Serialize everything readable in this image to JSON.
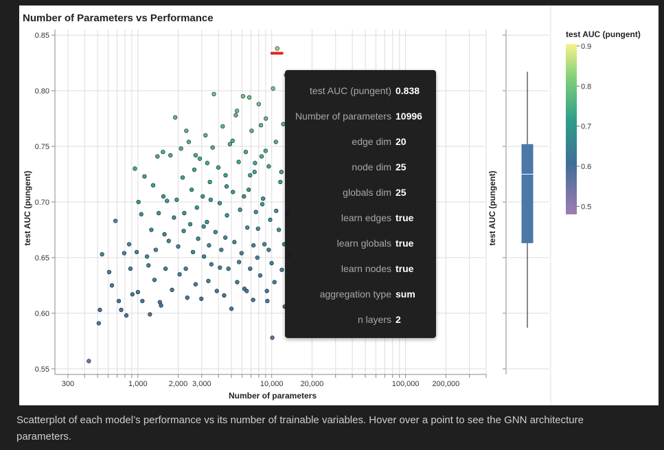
{
  "caption": "Scatterplot of each model’s performance vs its number of trainable variables. Hover over a point to see the GNN architecture parameters.",
  "chart_data": {
    "type": "scatter",
    "title": "Number of Parameters vs Performance",
    "xlabel": "Number of parameters",
    "ylabel": "test AUC (pungent)",
    "x_scale": "log",
    "xlim": [
      240,
      400000
    ],
    "ylim": [
      0.545,
      0.855
    ],
    "x_ticks": [
      300,
      1000,
      2000,
      3000,
      10000,
      20000,
      100000,
      200000
    ],
    "x_tick_labels": [
      "300",
      "1,000",
      "2,000",
      "3,000",
      "10,000",
      "20,000",
      "100,000",
      "200,000"
    ],
    "y_ticks": [
      0.55,
      0.6,
      0.65,
      0.7,
      0.75,
      0.8,
      0.85
    ],
    "y_tick_labels": [
      "0.55",
      "0.60",
      "0.65",
      "0.70",
      "0.75",
      "0.80",
      "0.85"
    ],
    "grid": true,
    "color_field": "test AUC (pungent)",
    "colorscale": [
      "#a07cb3",
      "#3e6f96",
      "#2e9d8a",
      "#7fd07a",
      "#f5f28a"
    ],
    "points": [
      [
        430,
        0.557
      ],
      [
        510,
        0.591
      ],
      [
        520,
        0.603
      ],
      [
        540,
        0.653
      ],
      [
        610,
        0.637
      ],
      [
        640,
        0.625
      ],
      [
        680,
        0.683
      ],
      [
        720,
        0.611
      ],
      [
        750,
        0.603
      ],
      [
        790,
        0.654
      ],
      [
        820,
        0.598
      ],
      [
        860,
        0.662
      ],
      [
        880,
        0.64
      ],
      [
        910,
        0.617
      ],
      [
        950,
        0.73
      ],
      [
        980,
        0.655
      ],
      [
        1000,
        0.619
      ],
      [
        1010,
        0.7
      ],
      [
        1060,
        0.689
      ],
      [
        1080,
        0.611
      ],
      [
        1120,
        0.723
      ],
      [
        1170,
        0.651
      ],
      [
        1200,
        0.643
      ],
      [
        1230,
        0.599
      ],
      [
        1260,
        0.675
      ],
      [
        1300,
        0.715
      ],
      [
        1330,
        0.63
      ],
      [
        1360,
        0.657
      ],
      [
        1400,
        0.741
      ],
      [
        1430,
        0.69
      ],
      [
        1460,
        0.61
      ],
      [
        1490,
        0.607
      ],
      [
        1540,
        0.745
      ],
      [
        1580,
        0.671
      ],
      [
        1610,
        0.64
      ],
      [
        1650,
        0.701
      ],
      [
        1700,
        0.665
      ],
      [
        1750,
        0.742
      ],
      [
        1800,
        0.621
      ],
      [
        1860,
        0.686
      ],
      [
        1900,
        0.776
      ],
      [
        1950,
        0.702
      ],
      [
        2000,
        0.66
      ],
      [
        2050,
        0.635
      ],
      [
        2100,
        0.748
      ],
      [
        2160,
        0.722
      ],
      [
        2220,
        0.69
      ],
      [
        2280,
        0.64
      ],
      [
        2340,
        0.614
      ],
      [
        2400,
        0.754
      ],
      [
        2460,
        0.68
      ],
      [
        2520,
        0.711
      ],
      [
        2580,
        0.655
      ],
      [
        2640,
        0.729
      ],
      [
        2700,
        0.626
      ],
      [
        2760,
        0.695
      ],
      [
        2820,
        0.667
      ],
      [
        2900,
        0.739
      ],
      [
        2980,
        0.613
      ],
      [
        3050,
        0.705
      ],
      [
        3120,
        0.651
      ],
      [
        3200,
        0.76
      ],
      [
        3280,
        0.682
      ],
      [
        3360,
        0.629
      ],
      [
        3450,
        0.718
      ],
      [
        3540,
        0.644
      ],
      [
        3620,
        0.749
      ],
      [
        3700,
        0.797
      ],
      [
        3800,
        0.673
      ],
      [
        3890,
        0.62
      ],
      [
        3990,
        0.731
      ],
      [
        4090,
        0.699
      ],
      [
        4200,
        0.657
      ],
      [
        4300,
        0.768
      ],
      [
        4410,
        0.616
      ],
      [
        4520,
        0.724
      ],
      [
        4630,
        0.688
      ],
      [
        4750,
        0.64
      ],
      [
        4870,
        0.752
      ],
      [
        5000,
        0.604
      ],
      [
        5130,
        0.709
      ],
      [
        5260,
        0.664
      ],
      [
        5390,
        0.778
      ],
      [
        5520,
        0.628
      ],
      [
        5660,
        0.736
      ],
      [
        5800,
        0.693
      ],
      [
        5950,
        0.654
      ],
      [
        6100,
        0.795
      ],
      [
        6250,
        0.622
      ],
      [
        6400,
        0.745
      ],
      [
        6570,
        0.677
      ],
      [
        6730,
        0.711
      ],
      [
        6900,
        0.64
      ],
      [
        7080,
        0.764
      ],
      [
        7260,
        0.612
      ],
      [
        7440,
        0.727
      ],
      [
        7620,
        0.691
      ],
      [
        7810,
        0.65
      ],
      [
        8000,
        0.788
      ],
      [
        8200,
        0.634
      ],
      [
        8400,
        0.741
      ],
      [
        8610,
        0.703
      ],
      [
        8820,
        0.662
      ],
      [
        9040,
        0.775
      ],
      [
        9270,
        0.611
      ],
      [
        9500,
        0.732
      ],
      [
        9740,
        0.684
      ],
      [
        9980,
        0.645
      ],
      [
        10230,
        0.802
      ],
      [
        10480,
        0.628
      ],
      [
        10740,
        0.754
      ],
      [
        10996,
        0.838
      ],
      [
        11300,
        0.675
      ],
      [
        11600,
        0.718
      ],
      [
        11900,
        0.639
      ],
      [
        12200,
        0.77
      ],
      [
        12500,
        0.606
      ],
      [
        12800,
        0.814
      ],
      [
        13100,
        0.689
      ],
      [
        13500,
        0.652
      ],
      [
        1550,
        0.705
      ],
      [
        2300,
        0.764
      ],
      [
        3100,
        0.678
      ],
      [
        4100,
        0.641
      ],
      [
        5100,
        0.755
      ],
      [
        6200,
        0.705
      ],
      [
        7300,
        0.661
      ],
      [
        8300,
        0.769
      ],
      [
        9200,
        0.62
      ],
      [
        10100,
        0.578
      ],
      [
        2700,
        0.742
      ],
      [
        3500,
        0.702
      ],
      [
        4500,
        0.668
      ],
      [
        5500,
        0.782
      ],
      [
        6500,
        0.62
      ],
      [
        7500,
        0.735
      ],
      [
        8500,
        0.698
      ],
      [
        9500,
        0.657
      ],
      [
        3300,
        0.735
      ],
      [
        6800,
        0.794
      ],
      [
        2200,
        0.674
      ],
      [
        3400,
        0.661
      ],
      [
        4600,
        0.714
      ],
      [
        5700,
        0.646
      ],
      [
        6900,
        0.724
      ],
      [
        7900,
        0.676
      ],
      [
        9000,
        0.746
      ],
      [
        10800,
        0.692
      ],
      [
        11800,
        0.727
      ],
      [
        12400,
        0.662
      ]
    ],
    "highlight_point": [
      10996,
      0.838
    ],
    "boxplot": {
      "min": 0.587,
      "q1": 0.663,
      "median": 0.725,
      "q3": 0.752,
      "max": 0.817
    },
    "legend": {
      "title": "test AUC (pungent)",
      "range": [
        0.48,
        0.905
      ],
      "ticks": [
        0.9,
        0.8,
        0.7,
        0.6,
        0.5
      ],
      "tick_labels": [
        "0.9",
        "0.8",
        "0.7",
        "0.6",
        "0.5"
      ],
      "placement": "right"
    }
  },
  "tooltip": {
    "rows": [
      {
        "key": "test AUC (pungent)",
        "value": "0.838"
      },
      {
        "key": "Number of parameters",
        "value": "10996"
      },
      {
        "key": "edge dim",
        "value": "20"
      },
      {
        "key": "node dim",
        "value": "25"
      },
      {
        "key": "globals dim",
        "value": "25"
      },
      {
        "key": "learn edges",
        "value": "true"
      },
      {
        "key": "learn globals",
        "value": "true"
      },
      {
        "key": "learn nodes",
        "value": "true"
      },
      {
        "key": "aggregation type",
        "value": "sum"
      },
      {
        "key": "n layers",
        "value": "2"
      }
    ]
  }
}
